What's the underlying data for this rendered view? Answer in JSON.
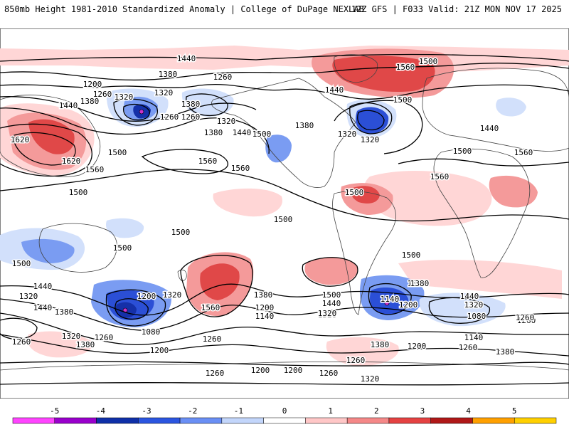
{
  "header": {
    "left": "850mb Height 1981-2010 Standardized Anomaly | College of DuPage NEXLAB",
    "right": "12Z GFS | F033 Valid: 21Z MON NOV 17 2025"
  },
  "contour_labels": [
    "1440",
    "1380",
    "1260",
    "1200",
    "1320",
    "1260",
    "1320",
    "1440",
    "1380",
    "1260",
    "1620",
    "1500",
    "1260",
    "1380",
    "1320",
    "1440",
    "1380",
    "1500",
    "1620",
    "1560",
    "1560",
    "1560",
    "1500",
    "1500",
    "1440",
    "1500",
    "1560",
    "1500",
    "1320",
    "1320",
    "1500",
    "1560",
    "1440",
    "1380",
    "1500",
    "1500",
    "1500",
    "1500",
    "1500",
    "1560",
    "1500",
    "1440",
    "1380",
    "1320",
    "1260",
    "1200",
    "1200",
    "1320",
    "1560",
    "1380",
    "1200",
    "1140",
    "1080",
    "1200",
    "1260",
    "1320",
    "1380",
    "1500",
    "1440",
    "1320",
    "1140",
    "1200",
    "1380",
    "1440",
    "1320",
    "1080",
    "1140",
    "1260",
    "1200",
    "1320",
    "1260",
    "1260",
    "1380",
    "1260",
    "1380",
    "1440",
    "1320",
    "1260",
    "1200",
    "1260",
    "1380",
    "1260"
  ],
  "colorbar": {
    "ticks": [
      "-5",
      "-4",
      "-3",
      "-2",
      "-1",
      "0",
      "1",
      "2",
      "3",
      "4",
      "5"
    ],
    "colors": [
      "#ff44ff",
      "#9900cc",
      "#0f2fa8",
      "#2b55e0",
      "#6a8ff5",
      "#c3d6fb",
      "#ffffff",
      "#ffc7c7",
      "#f58888",
      "#e54242",
      "#b01818",
      "#ffa000",
      "#ffd000"
    ]
  },
  "colors": {
    "neg1": "#d2e0fb",
    "neg2": "#7a9cf2",
    "neg3": "#2b4fd6",
    "neg4": "#1530a8",
    "neg5": "#cc33cc",
    "pos1": "#ffd6d6",
    "pos2": "#f49a9a",
    "pos3": "#e04848",
    "pos4": "#b81818"
  }
}
